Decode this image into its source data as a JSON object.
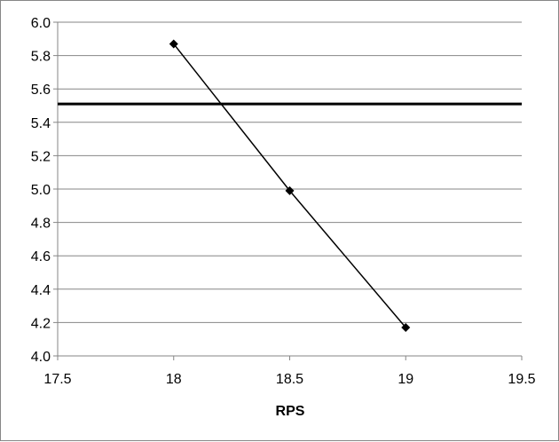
{
  "chart_data": {
    "type": "line",
    "title": "",
    "xlabel": "RPS",
    "ylabel": "",
    "xlim": [
      17.5,
      19.5
    ],
    "ylim": [
      4.0,
      6.0
    ],
    "x_ticks": [
      "17.5",
      "18",
      "18.5",
      "19",
      "19.5"
    ],
    "y_ticks": [
      "4.0",
      "4.2",
      "4.4",
      "4.6",
      "4.8",
      "5.0",
      "5.2",
      "5.4",
      "5.6",
      "5.8",
      "6.0"
    ],
    "grid": {
      "horizontal": true,
      "vertical": false
    },
    "legend": "none",
    "series": [
      {
        "type": "line",
        "marker": "diamond",
        "color": "#000000",
        "x": [
          18,
          18.5,
          19
        ],
        "y": [
          5.87,
          4.99,
          4.17
        ]
      }
    ],
    "reference_lines": [
      {
        "orientation": "horizontal",
        "y": 5.51,
        "color": "#000000"
      }
    ]
  }
}
